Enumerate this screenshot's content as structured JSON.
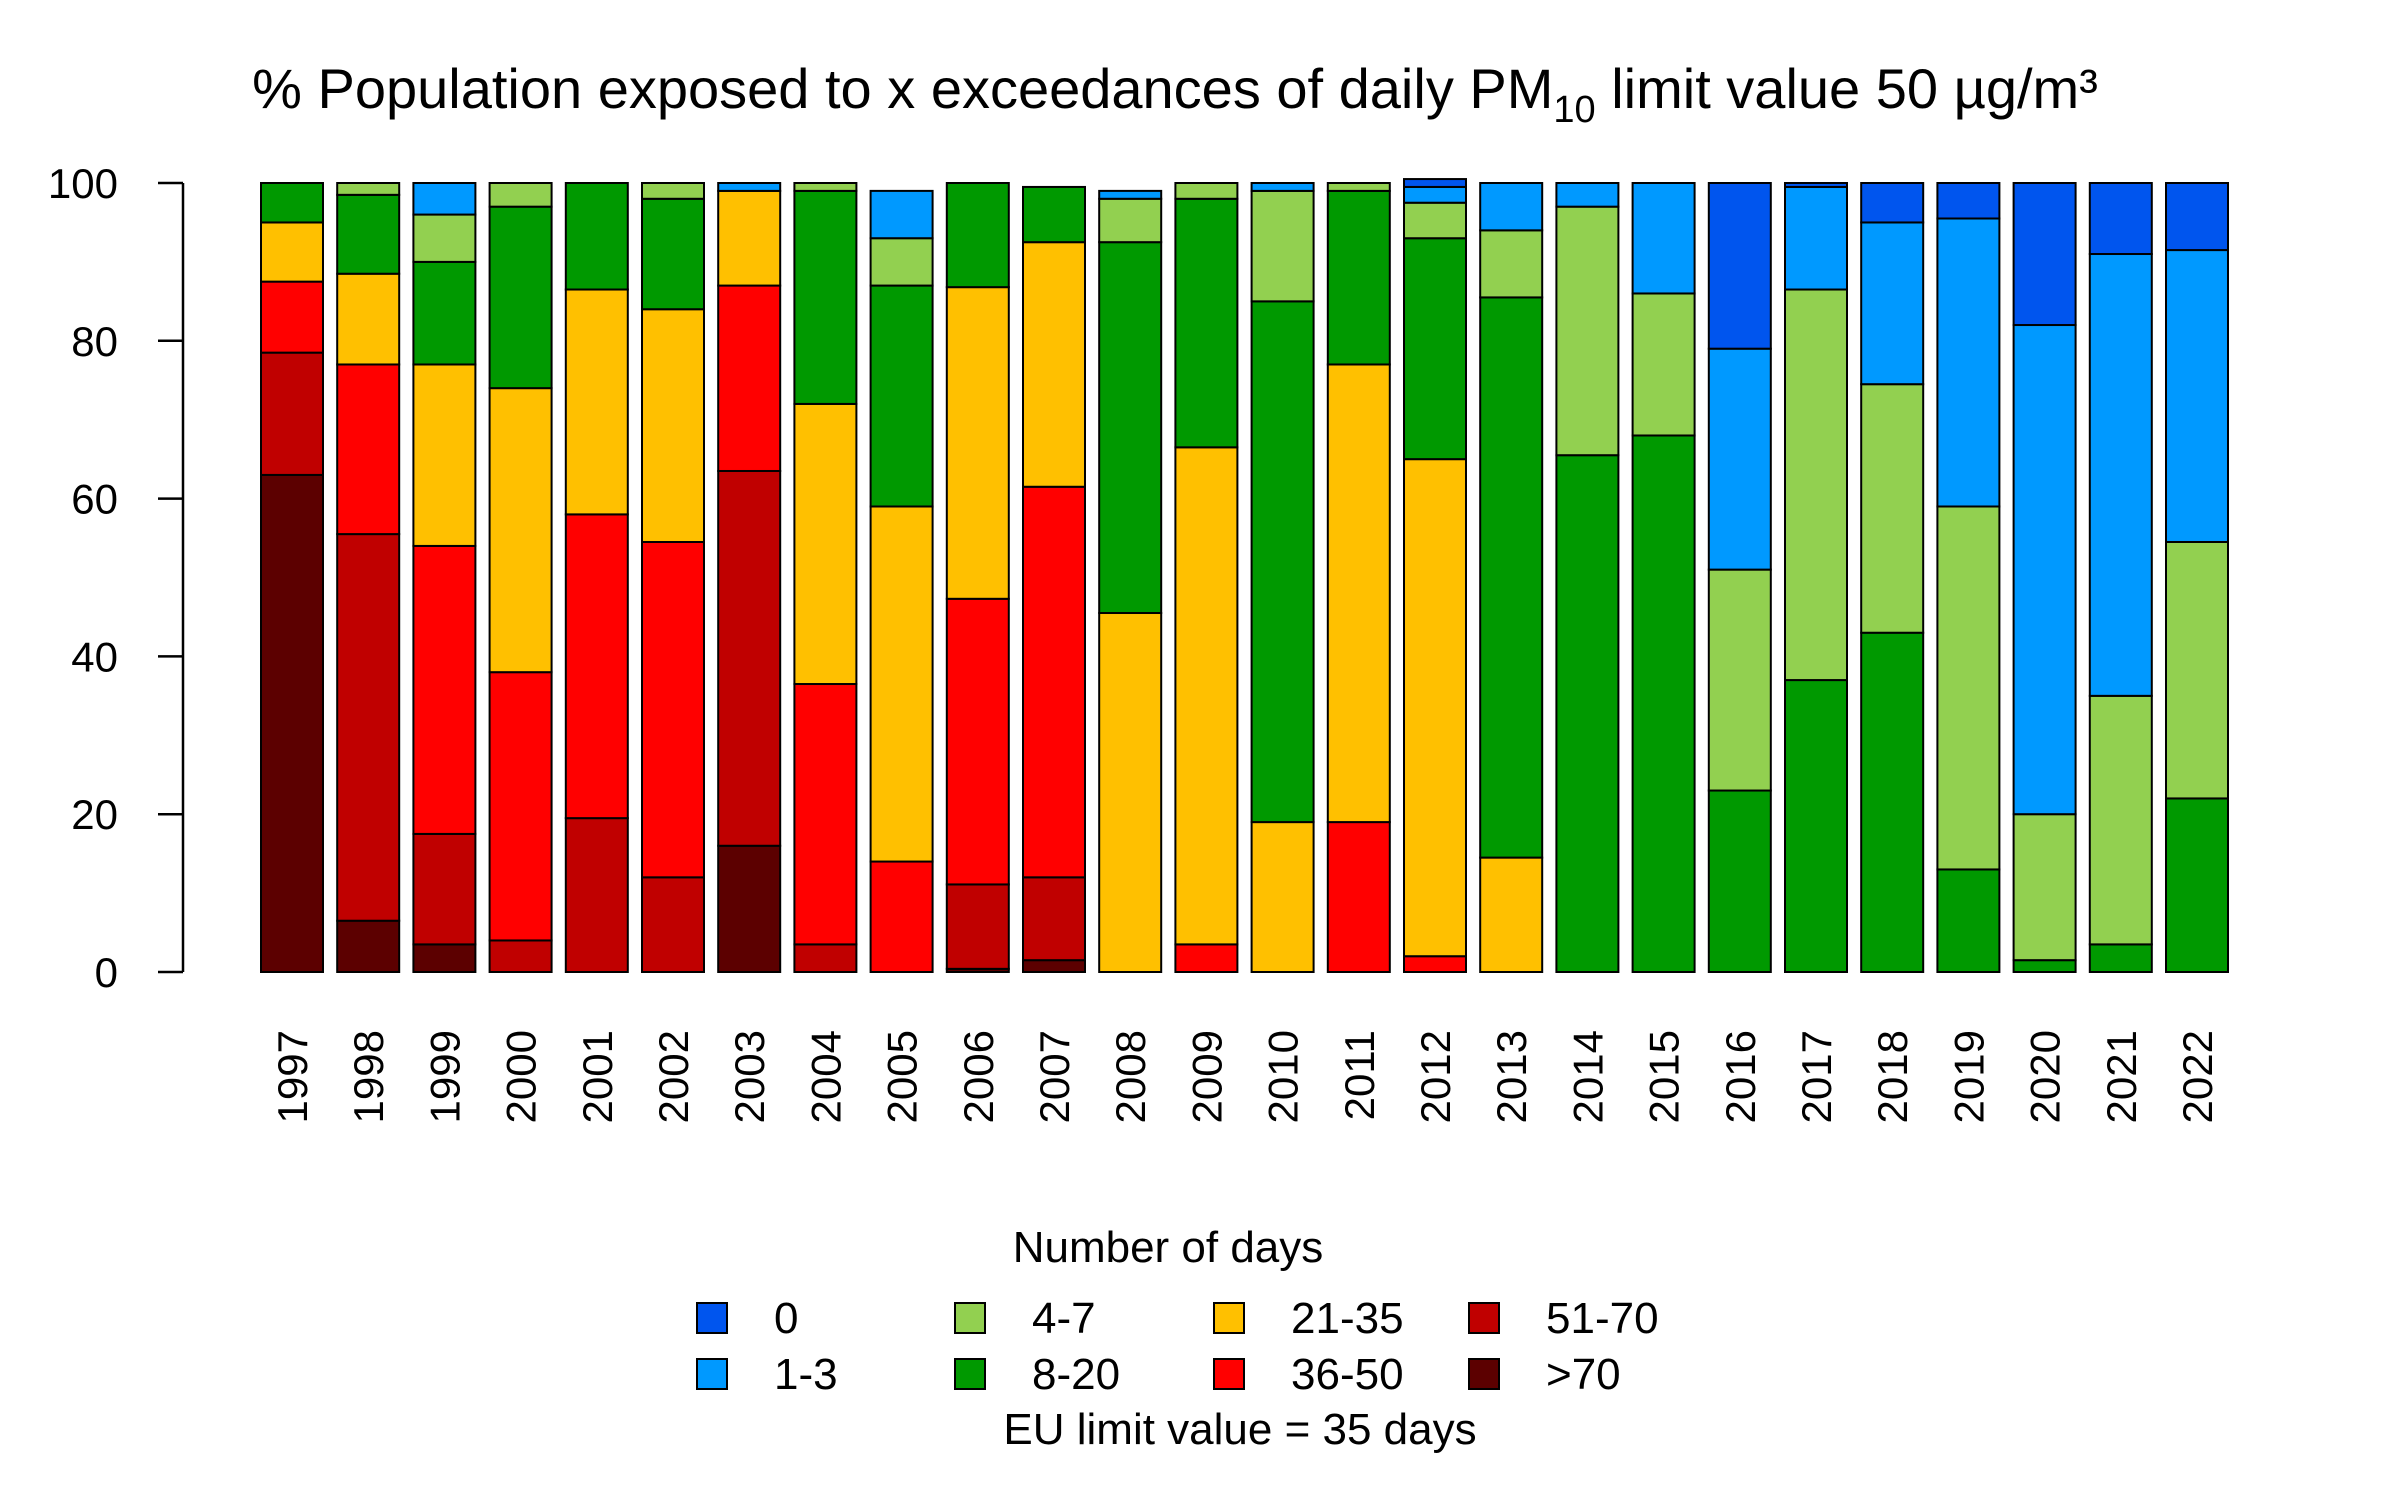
{
  "chart_data": {
    "type": "bar",
    "stacked": true,
    "title": {
      "prefix": "% Population exposed to x exceedances of daily PM",
      "subscript": "10",
      "suffix": " limit value 50 µg/m³"
    },
    "xlabel": "",
    "ylabel": "",
    "ylim": [
      0,
      100
    ],
    "yticks": [
      0,
      20,
      40,
      60,
      80,
      100
    ],
    "grid": false,
    "categories": [
      "1997",
      "1998",
      "1999",
      "2000",
      "2001",
      "2002",
      "2003",
      "2004",
      "2005",
      "2006",
      "2007",
      "2008",
      "2009",
      "2010",
      "2011",
      "2012",
      "2013",
      "2014",
      "2015",
      "2016",
      "2017",
      "2018",
      "2019",
      "2020",
      "2021",
      "2022"
    ],
    "legend": {
      "title": "Number of days",
      "note": "EU limit value = 35 days",
      "placement": "bottom"
    },
    "series": [
      {
        "name": ">70",
        "color": "#5c0000",
        "values": [
          63,
          6.5,
          3.5,
          0,
          0,
          0,
          16,
          0,
          0,
          0.4,
          1.5,
          0,
          0,
          0,
          0,
          0,
          0,
          0,
          0,
          0,
          0,
          0,
          0,
          0,
          0,
          0
        ]
      },
      {
        "name": "51-70",
        "color": "#c00000",
        "values": [
          15.5,
          49,
          14,
          4,
          19.5,
          12,
          47.5,
          3.5,
          0,
          10.7,
          10.5,
          0,
          0,
          0,
          0,
          0,
          0,
          0,
          0,
          0,
          0,
          0,
          0,
          0,
          0,
          0
        ]
      },
      {
        "name": "36-50",
        "color": "#ff0000",
        "values": [
          9,
          21.5,
          36.5,
          34,
          38.5,
          42.5,
          23.5,
          33,
          14,
          36.2,
          49.5,
          0,
          3.5,
          0,
          19,
          2,
          0,
          0,
          0,
          0,
          0,
          0,
          0,
          0,
          0,
          0
        ]
      },
      {
        "name": "21-35",
        "color": "#ffc000",
        "values": [
          7.5,
          11.5,
          23,
          36,
          28.5,
          29.5,
          12,
          35.5,
          45,
          39.5,
          31,
          45.5,
          63,
          19,
          58,
          63,
          14.5,
          0,
          0,
          0,
          0,
          0,
          0,
          0,
          0,
          0
        ]
      },
      {
        "name": "8-20",
        "color": "#009900",
        "values": [
          5,
          10,
          13,
          23,
          13.5,
          14,
          0,
          27,
          28,
          13.2,
          7,
          47,
          31.5,
          66,
          22,
          28,
          71,
          65.5,
          68,
          23,
          37,
          43,
          13,
          1.5,
          3.5,
          22
        ]
      },
      {
        "name": "4-7",
        "color": "#92d050",
        "values": [
          0,
          1.5,
          6,
          3,
          0,
          2,
          0,
          1,
          6,
          0,
          0,
          5.5,
          2,
          14,
          1,
          4.5,
          8.5,
          31.5,
          18,
          28,
          49.5,
          31.5,
          46,
          18.5,
          31.5,
          32.5
        ]
      },
      {
        "name": "1-3",
        "color": "#0099ff",
        "values": [
          0,
          0,
          4,
          0,
          0,
          0,
          1,
          0,
          6,
          0,
          0,
          1,
          0,
          1,
          0,
          2,
          6,
          3,
          14,
          28,
          13,
          20.5,
          36.5,
          62,
          56,
          37
        ]
      },
      {
        "name": "0",
        "color": "#0055ee",
        "values": [
          0,
          0,
          0,
          0,
          0,
          0,
          0,
          0,
          0,
          0,
          0,
          0,
          0,
          0,
          0,
          1,
          0,
          0,
          0,
          21,
          0.5,
          5,
          4.5,
          18,
          9,
          8.5
        ]
      }
    ]
  }
}
